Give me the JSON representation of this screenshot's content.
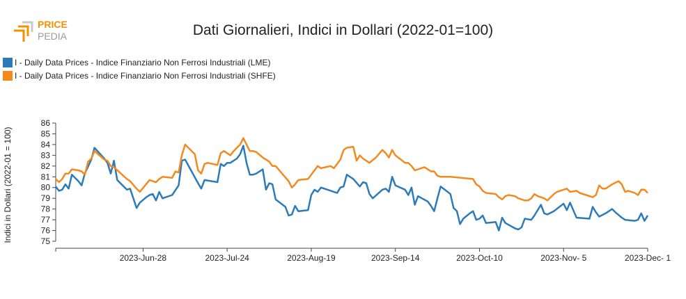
{
  "logo": {
    "top_text": "PRICE",
    "bottom_text": "PEDIA",
    "colors": {
      "accent": "#f39200",
      "text": "#9a9a9a"
    }
  },
  "title": "Dati Giornalieri, Indici in Dollari (2022-01=100)",
  "chart_data": {
    "type": "line",
    "title": "Dati Giornalieri, Indici in Dollari (2022-01=100)",
    "ylabel": "Indici in Dollari (2022-01 = 100)",
    "xlabel": "",
    "ylim": [
      75,
      86
    ],
    "yticks": [
      75,
      76,
      77,
      78,
      79,
      80,
      81,
      82,
      83,
      84,
      85,
      86
    ],
    "xlim": [
      "2023-06-01",
      "2023-12-01"
    ],
    "xticks": [
      {
        "date": "2023-06-28",
        "label": "2023-Jun-28"
      },
      {
        "date": "2023-07-24",
        "label": "2023-Jul-24"
      },
      {
        "date": "2023-08-19",
        "label": "2023-Aug-19"
      },
      {
        "date": "2023-09-14",
        "label": "2023-Sep-14"
      },
      {
        "date": "2023-10-10",
        "label": "2023-Oct-10"
      },
      {
        "date": "2023-11-05",
        "label": "2023-Nov- 5"
      },
      {
        "date": "2023-12-01",
        "label": "2023-Dec- 1"
      }
    ],
    "grid": false,
    "legend_position": "top-left",
    "series": [
      {
        "name": "I - Daily Data Prices - Indice Finanziario Non Ferrosi Industriali (LME)",
        "color": "#2b7bba",
        "points": [
          [
            "2023-06-01",
            80.1
          ],
          [
            "2023-06-02",
            79.7
          ],
          [
            "2023-06-03",
            79.8
          ],
          [
            "2023-06-04",
            80.3
          ],
          [
            "2023-06-05",
            79.9
          ],
          [
            "2023-06-06",
            81.2
          ],
          [
            "2023-06-08",
            80.6
          ],
          [
            "2023-06-09",
            80.2
          ],
          [
            "2023-06-10",
            81.3
          ],
          [
            "2023-06-12",
            82.6
          ],
          [
            "2023-06-13",
            83.7
          ],
          [
            "2023-06-16",
            82.7
          ],
          [
            "2023-06-17",
            82.3
          ],
          [
            "2023-06-18",
            81.3
          ],
          [
            "2023-06-19",
            82.5
          ],
          [
            "2023-06-20",
            80.7
          ],
          [
            "2023-06-23",
            79.8
          ],
          [
            "2023-06-24",
            79.9
          ],
          [
            "2023-06-26",
            78.1
          ],
          [
            "2023-06-27",
            78.6
          ],
          [
            "2023-06-29",
            79.1
          ],
          [
            "2023-06-30",
            79.3
          ],
          [
            "2023-07-01",
            79.4
          ],
          [
            "2023-07-02",
            78.8
          ],
          [
            "2023-07-03",
            79.6
          ],
          [
            "2023-07-04",
            79.0
          ],
          [
            "2023-07-07",
            79.3
          ],
          [
            "2023-07-09",
            80.2
          ],
          [
            "2023-07-10",
            82.5
          ],
          [
            "2023-07-11",
            82.6
          ],
          [
            "2023-07-15",
            80.4
          ],
          [
            "2023-07-16",
            79.9
          ],
          [
            "2023-07-17",
            80.7
          ],
          [
            "2023-07-21",
            80.5
          ],
          [
            "2023-07-22",
            82.2
          ],
          [
            "2023-07-23",
            82.0
          ],
          [
            "2023-07-24",
            82.3
          ],
          [
            "2023-07-25",
            82.3
          ],
          [
            "2023-07-27",
            82.7
          ],
          [
            "2023-07-28",
            83.1
          ],
          [
            "2023-07-29",
            83.9
          ],
          [
            "2023-07-30",
            82.3
          ],
          [
            "2023-07-31",
            81.2
          ],
          [
            "2023-08-01",
            81.2
          ],
          [
            "2023-08-02",
            81.3
          ],
          [
            "2023-08-04",
            81.7
          ],
          [
            "2023-08-05",
            79.8
          ],
          [
            "2023-08-06",
            80.4
          ],
          [
            "2023-08-07",
            80.3
          ],
          [
            "2023-08-08",
            78.9
          ],
          [
            "2023-08-11",
            78.2
          ],
          [
            "2023-08-12",
            77.4
          ],
          [
            "2023-08-13",
            77.5
          ],
          [
            "2023-08-14",
            78.3
          ],
          [
            "2023-08-15",
            77.8
          ],
          [
            "2023-08-18",
            77.9
          ],
          [
            "2023-08-19",
            79.3
          ],
          [
            "2023-08-20",
            79.8
          ],
          [
            "2023-08-21",
            79.6
          ],
          [
            "2023-08-22",
            80.0
          ],
          [
            "2023-08-26",
            79.6
          ],
          [
            "2023-08-27",
            79.5
          ],
          [
            "2023-08-28",
            80.0
          ],
          [
            "2023-08-29",
            80.1
          ],
          [
            "2023-08-30",
            81.2
          ],
          [
            "2023-09-01",
            80.8
          ],
          [
            "2023-09-03",
            80.1
          ],
          [
            "2023-09-04",
            80.5
          ],
          [
            "2023-09-05",
            80.4
          ],
          [
            "2023-09-06",
            79.4
          ],
          [
            "2023-09-07",
            79.0
          ],
          [
            "2023-09-10",
            79.8
          ],
          [
            "2023-09-11",
            79.9
          ],
          [
            "2023-09-12",
            79.6
          ],
          [
            "2023-09-13",
            81.0
          ],
          [
            "2023-09-14",
            80.2
          ],
          [
            "2023-09-17",
            79.8
          ],
          [
            "2023-09-18",
            79.3
          ],
          [
            "2023-09-19",
            80.0
          ],
          [
            "2023-09-20",
            78.4
          ],
          [
            "2023-09-21",
            79.2
          ],
          [
            "2023-09-24",
            78.7
          ],
          [
            "2023-09-25",
            78.3
          ],
          [
            "2023-09-26",
            77.8
          ],
          [
            "2023-09-27",
            79.0
          ],
          [
            "2023-09-28",
            80.1
          ],
          [
            "2023-10-01",
            79.4
          ],
          [
            "2023-10-02",
            78.1
          ],
          [
            "2023-10-03",
            77.8
          ],
          [
            "2023-10-04",
            76.6
          ],
          [
            "2023-10-05",
            77.1
          ],
          [
            "2023-10-07",
            77.6
          ],
          [
            "2023-10-08",
            77.8
          ],
          [
            "2023-10-09",
            77.0
          ],
          [
            "2023-10-10",
            77.1
          ],
          [
            "2023-10-11",
            77.4
          ],
          [
            "2023-10-12",
            76.7
          ],
          [
            "2023-10-15",
            76.8
          ],
          [
            "2023-10-16",
            76.0
          ],
          [
            "2023-10-17",
            77.2
          ],
          [
            "2023-10-18",
            76.7
          ],
          [
            "2023-10-21",
            76.2
          ],
          [
            "2023-10-22",
            76.1
          ],
          [
            "2023-10-23",
            76.3
          ],
          [
            "2023-10-24",
            77.1
          ],
          [
            "2023-10-26",
            77.0
          ],
          [
            "2023-10-27",
            77.4
          ],
          [
            "2023-10-29",
            78.4
          ],
          [
            "2023-10-30",
            77.6
          ],
          [
            "2023-10-31",
            77.5
          ],
          [
            "2023-11-02",
            77.8
          ],
          [
            "2023-11-05",
            78.5
          ],
          [
            "2023-11-06",
            77.9
          ],
          [
            "2023-11-07",
            78.6
          ],
          [
            "2023-11-09",
            77.2
          ],
          [
            "2023-11-13",
            77.1
          ],
          [
            "2023-11-14",
            78.2
          ],
          [
            "2023-11-15",
            77.7
          ],
          [
            "2023-11-16",
            77.3
          ],
          [
            "2023-11-18",
            77.6
          ],
          [
            "2023-11-20",
            78.0
          ],
          [
            "2023-11-21",
            77.7
          ],
          [
            "2023-11-23",
            77.2
          ],
          [
            "2023-11-24",
            77.0
          ],
          [
            "2023-11-27",
            76.9
          ],
          [
            "2023-11-28",
            77.0
          ],
          [
            "2023-11-29",
            77.6
          ],
          [
            "2023-11-30",
            76.9
          ],
          [
            "2023-12-01",
            77.4
          ]
        ]
      },
      {
        "name": "I - Daily Data Prices - Indice Finanziario Non Ferrosi Industriali (SHFE)",
        "color": "#f4891f",
        "points": [
          [
            "2023-06-01",
            80.8
          ],
          [
            "2023-06-02",
            80.5
          ],
          [
            "2023-06-03",
            80.8
          ],
          [
            "2023-06-04",
            81.3
          ],
          [
            "2023-06-05",
            81.3
          ],
          [
            "2023-06-06",
            81.7
          ],
          [
            "2023-06-08",
            81.6
          ],
          [
            "2023-06-09",
            81.5
          ],
          [
            "2023-06-10",
            81.2
          ],
          [
            "2023-06-11",
            82.4
          ],
          [
            "2023-06-12",
            82.7
          ],
          [
            "2023-06-13",
            83.4
          ],
          [
            "2023-06-16",
            82.6
          ],
          [
            "2023-06-17",
            82.5
          ],
          [
            "2023-06-18",
            82.0
          ],
          [
            "2023-06-19",
            81.9
          ],
          [
            "2023-06-23",
            80.8
          ],
          [
            "2023-06-24",
            80.6
          ],
          [
            "2023-06-26",
            79.9
          ],
          [
            "2023-06-27",
            79.6
          ],
          [
            "2023-06-30",
            80.7
          ],
          [
            "2023-07-01",
            80.6
          ],
          [
            "2023-07-02",
            80.5
          ],
          [
            "2023-07-03",
            80.8
          ],
          [
            "2023-07-04",
            81.0
          ],
          [
            "2023-07-07",
            80.9
          ],
          [
            "2023-07-08",
            81.5
          ],
          [
            "2023-07-09",
            81.4
          ],
          [
            "2023-07-10",
            83.0
          ],
          [
            "2023-07-11",
            84.0
          ],
          [
            "2023-07-14",
            83.1
          ],
          [
            "2023-07-15",
            81.6
          ],
          [
            "2023-07-16",
            81.3
          ],
          [
            "2023-07-17",
            82.2
          ],
          [
            "2023-07-18",
            82.3
          ],
          [
            "2023-07-21",
            82.1
          ],
          [
            "2023-07-22",
            83.2
          ],
          [
            "2023-07-23",
            83.4
          ],
          [
            "2023-07-24",
            83.2
          ],
          [
            "2023-07-25",
            83.0
          ],
          [
            "2023-07-26",
            83.4
          ],
          [
            "2023-07-28",
            84.0
          ],
          [
            "2023-07-29",
            84.6
          ],
          [
            "2023-07-30",
            84.0
          ],
          [
            "2023-07-31",
            83.4
          ],
          [
            "2023-08-01",
            83.4
          ],
          [
            "2023-08-02",
            83.3
          ],
          [
            "2023-08-04",
            82.8
          ],
          [
            "2023-08-06",
            82.4
          ],
          [
            "2023-08-07",
            82.0
          ],
          [
            "2023-08-08",
            82.0
          ],
          [
            "2023-08-12",
            80.6
          ],
          [
            "2023-08-13",
            80.0
          ],
          [
            "2023-08-14",
            80.3
          ],
          [
            "2023-08-15",
            80.7
          ],
          [
            "2023-08-18",
            80.8
          ],
          [
            "2023-08-19",
            81.2
          ],
          [
            "2023-08-20",
            81.6
          ],
          [
            "2023-08-21",
            82.0
          ],
          [
            "2023-08-22",
            81.8
          ],
          [
            "2023-08-25",
            82.0
          ],
          [
            "2023-08-26",
            81.8
          ],
          [
            "2023-08-28",
            82.6
          ],
          [
            "2023-08-29",
            83.5
          ],
          [
            "2023-08-30",
            83.7
          ],
          [
            "2023-09-01",
            83.8
          ],
          [
            "2023-09-02",
            82.5
          ],
          [
            "2023-09-03",
            83.0
          ],
          [
            "2023-09-04",
            82.7
          ],
          [
            "2023-09-06",
            82.3
          ],
          [
            "2023-09-08",
            82.8
          ],
          [
            "2023-09-10",
            83.5
          ],
          [
            "2023-09-11",
            83.2
          ],
          [
            "2023-09-12",
            82.8
          ],
          [
            "2023-09-13",
            83.5
          ],
          [
            "2023-09-14",
            83.0
          ],
          [
            "2023-09-17",
            82.3
          ],
          [
            "2023-09-18",
            82.3
          ],
          [
            "2023-09-19",
            82.0
          ],
          [
            "2023-09-20",
            81.6
          ],
          [
            "2023-09-23",
            81.9
          ],
          [
            "2023-09-25",
            81.5
          ],
          [
            "2023-09-26",
            81.5
          ],
          [
            "2023-09-27",
            81.1
          ],
          [
            "2023-09-28",
            81.0
          ],
          [
            "2023-10-01",
            81.0
          ],
          [
            "2023-10-08",
            80.8
          ],
          [
            "2023-10-09",
            80.3
          ],
          [
            "2023-10-10",
            80.1
          ],
          [
            "2023-10-11",
            79.7
          ],
          [
            "2023-10-12",
            79.5
          ],
          [
            "2023-10-15",
            79.4
          ],
          [
            "2023-10-16",
            79.1
          ],
          [
            "2023-10-17",
            78.9
          ],
          [
            "2023-10-18",
            79.2
          ],
          [
            "2023-10-19",
            79.3
          ],
          [
            "2023-10-21",
            79.2
          ],
          [
            "2023-10-22",
            79.0
          ],
          [
            "2023-10-24",
            78.8
          ],
          [
            "2023-10-25",
            78.8
          ],
          [
            "2023-10-26",
            79.0
          ],
          [
            "2023-10-27",
            79.4
          ],
          [
            "2023-10-28",
            79.2
          ],
          [
            "2023-10-30",
            79.0
          ],
          [
            "2023-10-31",
            78.8
          ],
          [
            "2023-11-02",
            79.4
          ],
          [
            "2023-11-03",
            79.6
          ],
          [
            "2023-11-05",
            79.8
          ],
          [
            "2023-11-06",
            79.9
          ],
          [
            "2023-11-07",
            79.6
          ],
          [
            "2023-11-09",
            79.7
          ],
          [
            "2023-11-10",
            79.5
          ],
          [
            "2023-11-12",
            79.3
          ],
          [
            "2023-11-14",
            79.1
          ],
          [
            "2023-11-15",
            79.3
          ],
          [
            "2023-11-16",
            80.2
          ],
          [
            "2023-11-17",
            79.9
          ],
          [
            "2023-11-18",
            79.9
          ],
          [
            "2023-11-20",
            80.3
          ],
          [
            "2023-11-22",
            80.6
          ],
          [
            "2023-11-23",
            80.3
          ],
          [
            "2023-11-24",
            79.6
          ],
          [
            "2023-11-25",
            79.7
          ],
          [
            "2023-11-27",
            79.5
          ],
          [
            "2023-11-28",
            79.3
          ],
          [
            "2023-11-29",
            79.8
          ],
          [
            "2023-11-30",
            79.8
          ],
          [
            "2023-12-01",
            79.5
          ]
        ]
      }
    ]
  }
}
